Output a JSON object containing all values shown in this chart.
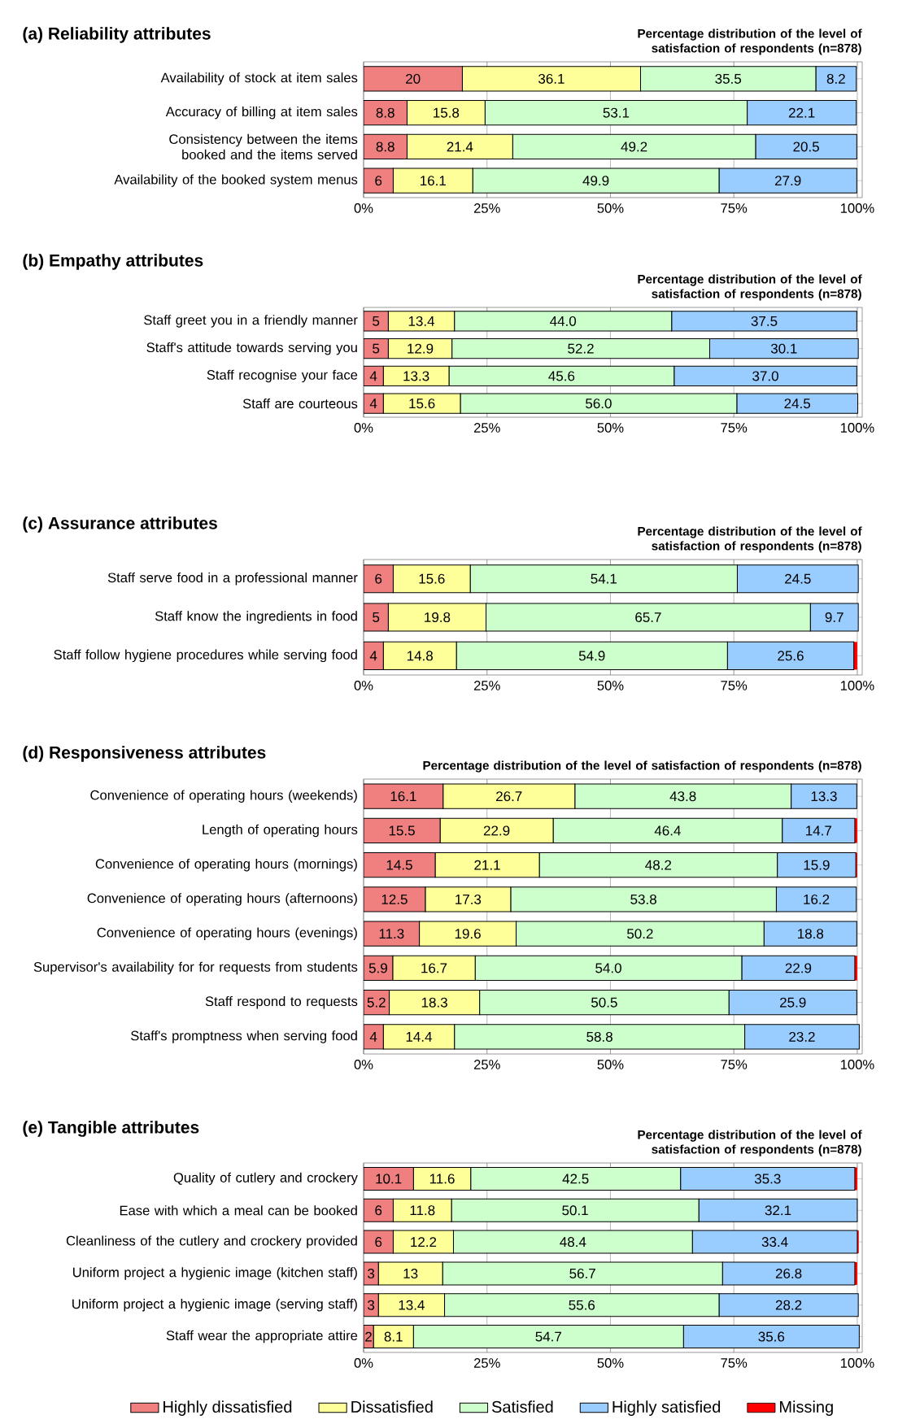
{
  "chart_data": [
    {
      "type": "bar",
      "orientation": "horizontal",
      "stacked": true,
      "grid": "x",
      "title": "(a) Reliability attributes",
      "subtitle": "Percentage distribution of the level of satisfaction of respondents (n=878)",
      "categories": [
        "Availability of stock at item sales",
        "Accuracy of billing at item sales",
        "Consistency between the items booked and the items served",
        "Availability of the booked system menus"
      ],
      "xlim": [
        0,
        101
      ],
      "xticks": [
        {
          "value": 0,
          "label": "0%"
        },
        {
          "value": 25,
          "label": "25%"
        },
        {
          "value": 50,
          "label": "50%"
        },
        {
          "value": 75,
          "label": "75%"
        },
        {
          "value": 100,
          "label": "100%"
        }
      ],
      "series": [
        {
          "color": "#f08080",
          "values": [
            20,
            8.8,
            8.8,
            6
          ],
          "value_labels": [
            "20",
            "8.8",
            "8.8",
            "6"
          ]
        },
        {
          "color": "#ffff99",
          "values": [
            36.1,
            15.8,
            21.4,
            16.1
          ],
          "value_labels": [
            "36.1",
            "15.8",
            "21.4",
            "16.1"
          ]
        },
        {
          "color": "#ccffcc",
          "values": [
            35.5,
            53.1,
            49.2,
            49.9
          ],
          "value_labels": [
            "35.5",
            "53.1",
            "49.2",
            "49.9"
          ]
        },
        {
          "color": "#99ccff",
          "values": [
            8.2,
            22.1,
            20.5,
            27.9
          ],
          "value_labels": [
            "8.2",
            "22.1",
            "20.5",
            "27.9"
          ]
        }
      ]
    },
    {
      "type": "bar",
      "orientation": "horizontal",
      "stacked": true,
      "grid": "x",
      "title": "(b) Empathy attributes",
      "subtitle": "Percentage distribution of the level of satisfaction of respondents (n=878)",
      "categories": [
        "Staff greet you in a friendly manner",
        "Staff's attitude towards serving you",
        "Staff recognise your face",
        "Staff are courteous"
      ],
      "xlim": [
        0,
        101
      ],
      "xticks": [
        {
          "value": 0,
          "label": "0%"
        },
        {
          "value": 25,
          "label": "25%"
        },
        {
          "value": 50,
          "label": "50%"
        },
        {
          "value": 75,
          "label": "75%"
        },
        {
          "value": 100,
          "label": "100%"
        }
      ],
      "series": [
        {
          "color": "#f08080",
          "values": [
            5,
            5,
            4,
            4
          ],
          "value_labels": [
            "5",
            "5",
            "4",
            "4"
          ]
        },
        {
          "color": "#ffff99",
          "values": [
            13.4,
            12.9,
            13.3,
            15.6
          ],
          "value_labels": [
            "13.4",
            "12.9",
            "13.3",
            "15.6"
          ]
        },
        {
          "color": "#ccffcc",
          "values": [
            44.0,
            52.2,
            45.6,
            56.0
          ],
          "value_labels": [
            "44.0",
            "52.2",
            "45.6",
            "56.0"
          ]
        },
        {
          "color": "#99ccff",
          "values": [
            37.5,
            30.1,
            37.0,
            24.5
          ],
          "value_labels": [
            "37.5",
            "30.1",
            "37.0",
            "24.5"
          ]
        }
      ]
    },
    {
      "type": "bar",
      "orientation": "horizontal",
      "stacked": true,
      "grid": "x",
      "title": "(c) Assurance attributes",
      "subtitle": "Percentage distribution of the level of satisfaction of respondents (n=878)",
      "categories": [
        "Staff serve food in a professional manner",
        "Staff know the ingredients in food",
        "Staff follow hygiene procedures while serving food"
      ],
      "xlim": [
        0,
        101
      ],
      "xticks": [
        {
          "value": 0,
          "label": "0%"
        },
        {
          "value": 25,
          "label": "25%"
        },
        {
          "value": 50,
          "label": "50%"
        },
        {
          "value": 75,
          "label": "75%"
        },
        {
          "value": 100,
          "label": "100%"
        }
      ],
      "series": [
        {
          "color": "#f08080",
          "values": [
            6,
            5,
            4
          ],
          "value_labels": [
            "6",
            "5",
            "4"
          ]
        },
        {
          "color": "#ffff99",
          "values": [
            15.6,
            19.8,
            14.8
          ],
          "value_labels": [
            "15.6",
            "19.8",
            "14.8"
          ]
        },
        {
          "color": "#ccffcc",
          "values": [
            54.1,
            65.7,
            54.9
          ],
          "value_labels": [
            "54.1",
            "65.7",
            "54.9"
          ]
        },
        {
          "color": "#99ccff",
          "values": [
            24.5,
            9.7,
            25.6
          ],
          "value_labels": [
            "24.5",
            "9.7",
            "25.6"
          ]
        },
        {
          "color": "#ff0000",
          "values": [
            null,
            null,
            0.7
          ]
        }
      ]
    },
    {
      "type": "bar",
      "orientation": "horizontal",
      "stacked": true,
      "grid": "x",
      "title": "(d) Responsiveness attributes",
      "subtitle": "Percentage distribution of the level of satisfaction of respondents (n=878)",
      "categories": [
        "Convenience of operating hours (weekends)",
        "Length of operating hours",
        "Convenience of operating hours (mornings)",
        "Convenience of operating hours (afternoons)",
        "Convenience of operating hours (evenings)",
        "Supervisor's availability for for requests from students",
        "Staff respond to requests",
        "Staff's promptness when serving food"
      ],
      "xlim": [
        0,
        101
      ],
      "xticks": [
        {
          "value": 0,
          "label": "0%"
        },
        {
          "value": 25,
          "label": "25%"
        },
        {
          "value": 50,
          "label": "50%"
        },
        {
          "value": 75,
          "label": "75%"
        },
        {
          "value": 100,
          "label": "100%"
        }
      ],
      "series": [
        {
          "color": "#f08080",
          "values": [
            16.1,
            15.5,
            14.5,
            12.5,
            11.3,
            5.9,
            5.2,
            4
          ],
          "value_labels": [
            "16.1",
            "15.5",
            "14.5",
            "12.5",
            "11.3",
            "5.9",
            "5.2",
            "4"
          ]
        },
        {
          "color": "#ffff99",
          "values": [
            26.7,
            22.9,
            21.1,
            17.3,
            19.6,
            16.7,
            18.3,
            14.4
          ],
          "value_labels": [
            "26.7",
            "22.9",
            "21.1",
            "17.3",
            "19.6",
            "16.7",
            "18.3",
            "14.4"
          ]
        },
        {
          "color": "#ccffcc",
          "values": [
            43.8,
            46.4,
            48.2,
            53.8,
            50.2,
            54.0,
            50.5,
            58.8
          ],
          "value_labels": [
            "43.8",
            "46.4",
            "48.2",
            "53.8",
            "50.2",
            "54.0",
            "50.5",
            "58.8"
          ]
        },
        {
          "color": "#99ccff",
          "values": [
            13.3,
            14.7,
            15.9,
            16.2,
            18.8,
            22.9,
            25.9,
            23.2
          ],
          "value_labels": [
            "13.3",
            "14.7",
            "15.9",
            "16.2",
            "18.8",
            "22.9",
            "25.9",
            "23.2"
          ]
        },
        {
          "color": "#ff0000",
          "values": [
            null,
            0.5,
            0.3,
            null,
            null,
            0.5,
            null,
            null
          ]
        }
      ]
    },
    {
      "type": "bar",
      "orientation": "horizontal",
      "stacked": true,
      "grid": "x",
      "legend": "bottom",
      "title": "(e) Tangible attributes",
      "subtitle": "Percentage distribution of the level of satisfaction of respondents (n=878)",
      "categories": [
        "Quality of cutlery and crockery",
        "Ease with which a meal can be booked",
        "Cleanliness of the cutlery and crockery provided",
        "Uniform project a hygienic image (kitchen staff)",
        "Uniform project a hygienic image (serving staff)",
        "Staff wear the appropriate attire"
      ],
      "xlim": [
        0,
        101
      ],
      "xticks": [
        {
          "value": 0,
          "label": "0%"
        },
        {
          "value": 25,
          "label": "25%"
        },
        {
          "value": 50,
          "label": "50%"
        },
        {
          "value": 75,
          "label": "75%"
        },
        {
          "value": 100,
          "label": "100%"
        }
      ],
      "series": [
        {
          "name": "Highly dissatisfied",
          "color": "#f08080",
          "values": [
            10.1,
            6,
            6,
            3,
            3,
            2
          ],
          "value_labels": [
            "10.1",
            "6",
            "6",
            "3",
            "3",
            "2"
          ]
        },
        {
          "name": "Dissatisfied",
          "color": "#ffff99",
          "values": [
            11.6,
            11.8,
            12.2,
            13,
            13.4,
            8.1
          ],
          "value_labels": [
            "11.6",
            "11.8",
            "12.2",
            "13",
            "13.4",
            "8.1"
          ]
        },
        {
          "name": "Satisfied",
          "color": "#ccffcc",
          "values": [
            42.5,
            50.1,
            48.4,
            56.7,
            55.6,
            54.7
          ],
          "value_labels": [
            "42.5",
            "50.1",
            "48.4",
            "56.7",
            "55.6",
            "54.7"
          ]
        },
        {
          "name": "Highly satisfied",
          "color": "#99ccff",
          "values": [
            35.3,
            32.1,
            33.4,
            26.8,
            28.2,
            35.6
          ],
          "value_labels": [
            "35.3",
            "32.1",
            "33.4",
            "26.8",
            "28.2",
            "35.6"
          ]
        },
        {
          "name": "Missing",
          "color": "#ff0000",
          "values": [
            0.5,
            null,
            0.3,
            0.5,
            null,
            null
          ]
        }
      ]
    }
  ]
}
